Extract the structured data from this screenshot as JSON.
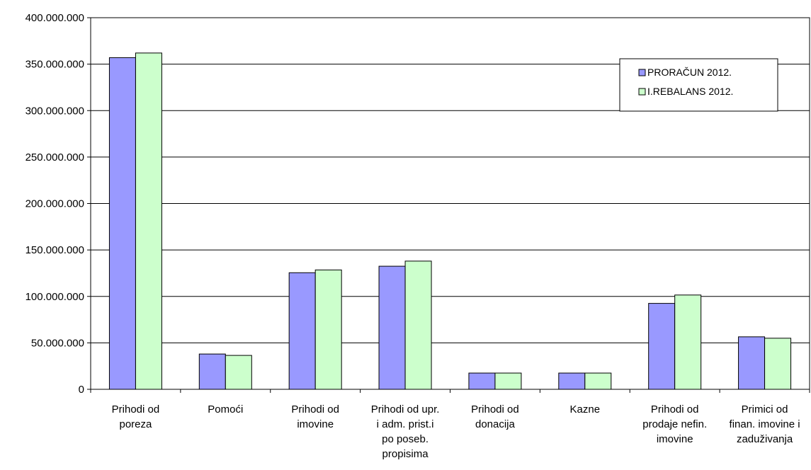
{
  "chart_data": {
    "type": "bar",
    "categories": [
      [
        "Prihodi od",
        "poreza"
      ],
      [
        "Pomoći"
      ],
      [
        "Prihodi od",
        "imovine"
      ],
      [
        "Prihodi od upr.",
        "i adm. prist.i",
        "po poseb.",
        "propisima"
      ],
      [
        "Prihodi od",
        "donacija"
      ],
      [
        "Kazne"
      ],
      [
        "Prihodi od",
        "prodaje nefin.",
        "imovine"
      ],
      [
        "Primici od",
        "finan. imovine i",
        "zaduživanja"
      ]
    ],
    "series": [
      {
        "name": "PRORAČUN 2012.",
        "color": "#9999ff",
        "values": [
          357000000,
          38000000,
          125500000,
          132500000,
          17500000,
          17500000,
          92500000,
          56500000
        ]
      },
      {
        "name": "I.REBALANS 2012.",
        "color": "#ccffcc",
        "values": [
          362000000,
          36500000,
          128500000,
          138000000,
          17500000,
          17500000,
          101500000,
          55000000
        ]
      }
    ],
    "ylim": [
      0,
      400000000
    ],
    "yticks": [
      "0",
      "50.000.000",
      "100.000.000",
      "150.000.000",
      "200.000.000",
      "250.000.000",
      "300.000.000",
      "350.000.000",
      "400.000.000"
    ],
    "grid": true,
    "legend_position": "top-right"
  }
}
